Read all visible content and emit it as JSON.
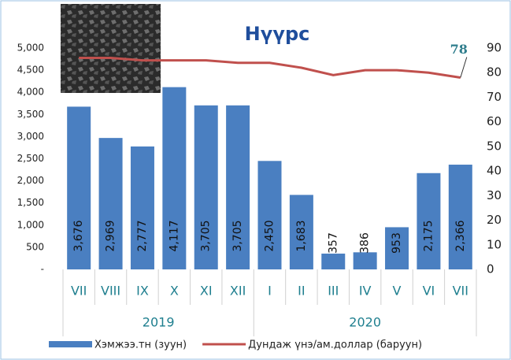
{
  "chart_data": {
    "type": "bar-line",
    "title": "Нүүрс",
    "categories": [
      "VII",
      "VIII",
      "IX",
      "X",
      "XI",
      "XII",
      "I",
      "II",
      "III",
      "IV",
      "V",
      "VI",
      "VII"
    ],
    "x_groups": [
      "2019",
      "2020"
    ],
    "series": [
      {
        "name": "Хэмжээ.тн (зуун)",
        "type": "bar",
        "color": "#4a7fc1",
        "values": [
          3676,
          2969,
          2777,
          4117,
          3705,
          3705,
          2450,
          1683,
          357,
          386,
          953,
          2175,
          2366
        ],
        "value_labels": [
          "3,676",
          "2,969",
          "2,777",
          "4,117",
          "3,705",
          "3,705",
          "2,450",
          "1,683",
          "357",
          "386",
          "953",
          "2,175",
          "2,366"
        ]
      },
      {
        "name": "Дундаж үнэ/ам.доллар (баруун)",
        "type": "line",
        "axis": "y2",
        "color": "#c0504d",
        "values": [
          86,
          86,
          85,
          85,
          85,
          84,
          84,
          82,
          79,
          81,
          81,
          80,
          78
        ],
        "last_label": "78"
      }
    ],
    "ylim": [
      0,
      5000
    ],
    "yticks": [
      {
        "value": 0,
        "label": "-"
      },
      500,
      {
        "value": 1000,
        "label": "1,000"
      },
      {
        "value": 1500,
        "label": "1,500"
      },
      {
        "value": 2000,
        "label": "2,000"
      },
      {
        "value": 2500,
        "label": "2,500"
      },
      {
        "value": 3000,
        "label": "3,000"
      },
      {
        "value": 3500,
        "label": "3,500"
      },
      {
        "value": 4000,
        "label": "4,000"
      },
      {
        "value": 4500,
        "label": "4,500"
      },
      {
        "value": 5000,
        "label": "5,000"
      }
    ],
    "y2lim": [
      0,
      90
    ],
    "y2ticks": [
      0,
      10,
      20,
      30,
      40,
      50,
      60,
      70,
      80,
      90
    ]
  }
}
